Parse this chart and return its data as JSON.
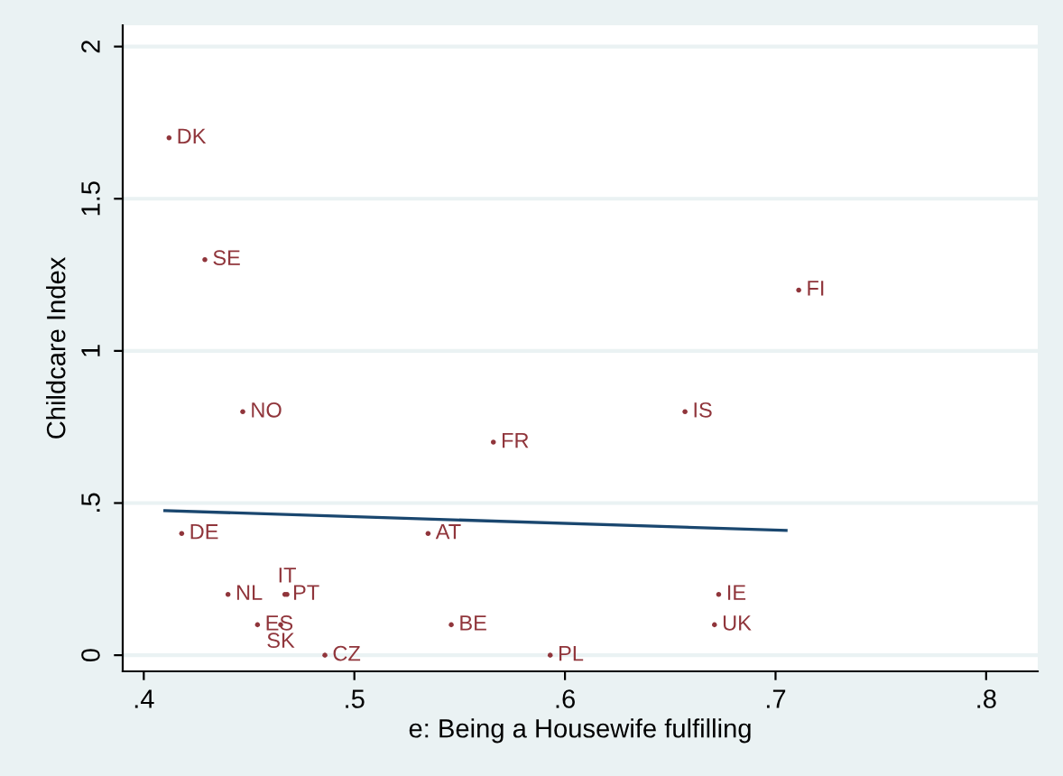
{
  "chart_data": {
    "type": "scatter",
    "xlabel": "e: Being a Housewife fulfilling",
    "ylabel": "Childcare Index",
    "xlim": [
      0.39,
      0.8245
    ],
    "ylim": [
      -0.053,
      2.07
    ],
    "xticks": [
      {
        "value": 0.4,
        "label": ".4"
      },
      {
        "value": 0.5,
        "label": ".5"
      },
      {
        "value": 0.6,
        "label": ".6"
      },
      {
        "value": 0.7,
        "label": ".7"
      },
      {
        "value": 0.8,
        "label": ".8"
      }
    ],
    "yticks": [
      0,
      {
        "value": 0.5,
        "label": ".5"
      },
      1,
      {
        "value": 1.5,
        "label": "1.5"
      },
      2
    ],
    "grid": "y",
    "series": [
      {
        "type": "scatter",
        "color": "#90353b",
        "marker": "circle",
        "x": [
          0.412,
          0.429,
          0.447,
          0.566,
          0.418,
          0.535,
          0.44,
          0.467,
          0.468,
          0.454,
          0.465,
          0.486,
          0.546,
          0.593,
          0.657,
          0.711,
          0.673,
          0.671
        ],
        "values": [
          1.7,
          1.3,
          0.8,
          0.7,
          0.4,
          0.4,
          0.2,
          0.2,
          0.2,
          0.1,
          0.1,
          0.0,
          0.1,
          0.0,
          0.8,
          1.2,
          0.2,
          0.1
        ],
        "value_labels": [
          "DK",
          "SE",
          "NO",
          "FR",
          "DE",
          "AT",
          "NL",
          "PT",
          "IT",
          "ES",
          "SK",
          "CZ",
          "BE",
          "PL",
          "IS",
          "FI",
          "IE",
          "UK"
        ]
      },
      {
        "type": "line",
        "color": "#1a476f",
        "x": [
          0.41,
          0.705
        ],
        "values": [
          0.475,
          0.41
        ]
      }
    ]
  }
}
